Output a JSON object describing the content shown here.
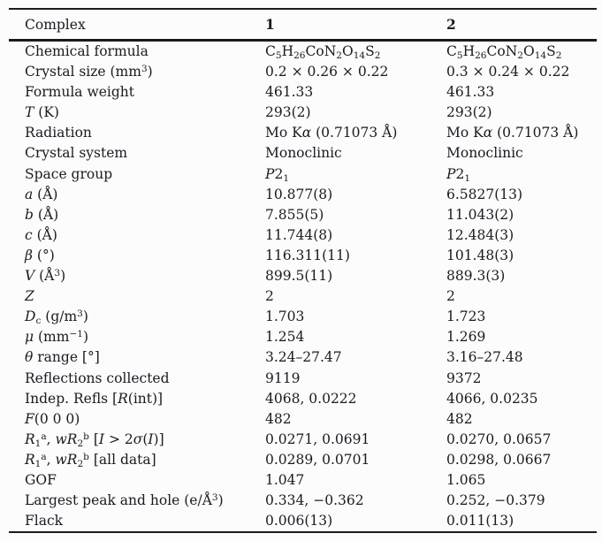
{
  "table": {
    "title": "Crystallographic data table",
    "text_color": "#1a1a22",
    "rule_color": "#1b1b1b",
    "header": {
      "label": "Complex",
      "col1": "1",
      "col2": "2"
    },
    "rows": [
      {
        "label": [
          [
            "n",
            "Chemical formula"
          ]
        ],
        "c1": [
          [
            "n",
            "C"
          ],
          [
            "sub",
            "5"
          ],
          [
            "n",
            "H"
          ],
          [
            "sub",
            "26"
          ],
          [
            "n",
            "CoN"
          ],
          [
            "sub",
            "2"
          ],
          [
            "n",
            "O"
          ],
          [
            "sub",
            "14"
          ],
          [
            "n",
            "S"
          ],
          [
            "sub",
            "2"
          ]
        ],
        "c2": [
          [
            "n",
            "C"
          ],
          [
            "sub",
            "5"
          ],
          [
            "n",
            "H"
          ],
          [
            "sub",
            "26"
          ],
          [
            "n",
            "CoN"
          ],
          [
            "sub",
            "2"
          ],
          [
            "n",
            "O"
          ],
          [
            "sub",
            "14"
          ],
          [
            "n",
            "S"
          ],
          [
            "sub",
            "2"
          ]
        ]
      },
      {
        "label": [
          [
            "n",
            "Crystal size (mm"
          ],
          [
            "sup",
            "3"
          ],
          [
            "n",
            ")"
          ]
        ],
        "c1": [
          [
            "n",
            "0.2 × 0.26 × 0.22"
          ]
        ],
        "c2": [
          [
            "n",
            "0.3 × 0.24 × 0.22"
          ]
        ]
      },
      {
        "label": [
          [
            "n",
            "Formula weight"
          ]
        ],
        "c1": [
          [
            "n",
            "461.33"
          ]
        ],
        "c2": [
          [
            "n",
            "461.33"
          ]
        ]
      },
      {
        "label": [
          [
            "i",
            "T"
          ],
          [
            "n",
            " (K)"
          ]
        ],
        "c1": [
          [
            "n",
            "293(2)"
          ]
        ],
        "c2": [
          [
            "n",
            "293(2)"
          ]
        ]
      },
      {
        "label": [
          [
            "n",
            "Radiation"
          ]
        ],
        "c1": [
          [
            "n",
            "Mo K"
          ],
          [
            "i",
            "α"
          ],
          [
            "n",
            " (0.71073 Å)"
          ]
        ],
        "c2": [
          [
            "n",
            "Mo K"
          ],
          [
            "i",
            "α"
          ],
          [
            "n",
            " (0.71073 Å)"
          ]
        ]
      },
      {
        "label": [
          [
            "n",
            "Crystal system"
          ]
        ],
        "c1": [
          [
            "n",
            "Monoclinic"
          ]
        ],
        "c2": [
          [
            "n",
            "Monoclinic"
          ]
        ]
      },
      {
        "label": [
          [
            "n",
            "Space group"
          ]
        ],
        "c1": [
          [
            "i",
            "P"
          ],
          [
            "n",
            "2"
          ],
          [
            "sub",
            "1"
          ]
        ],
        "c2": [
          [
            "i",
            "P"
          ],
          [
            "n",
            "2"
          ],
          [
            "sub",
            "1"
          ]
        ]
      },
      {
        "label": [
          [
            "i",
            "a"
          ],
          [
            "n",
            " (Å)"
          ]
        ],
        "c1": [
          [
            "n",
            "10.877(8)"
          ]
        ],
        "c2": [
          [
            "n",
            "6.5827(13)"
          ]
        ]
      },
      {
        "label": [
          [
            "i",
            "b"
          ],
          [
            "n",
            " (Å)"
          ]
        ],
        "c1": [
          [
            "n",
            "7.855(5)"
          ]
        ],
        "c2": [
          [
            "n",
            "11.043(2)"
          ]
        ]
      },
      {
        "label": [
          [
            "i",
            "c"
          ],
          [
            "n",
            " (Å)"
          ]
        ],
        "c1": [
          [
            "n",
            "11.744(8)"
          ]
        ],
        "c2": [
          [
            "n",
            "12.484(3)"
          ]
        ]
      },
      {
        "label": [
          [
            "i",
            "β"
          ],
          [
            "n",
            " (°)"
          ]
        ],
        "c1": [
          [
            "n",
            "116.311(11)"
          ]
        ],
        "c2": [
          [
            "n",
            "101.48(3)"
          ]
        ]
      },
      {
        "label": [
          [
            "i",
            "V"
          ],
          [
            "n",
            " (Å"
          ],
          [
            "sup",
            "3"
          ],
          [
            "n",
            ")"
          ]
        ],
        "c1": [
          [
            "n",
            "899.5(11)"
          ]
        ],
        "c2": [
          [
            "n",
            "889.3(3)"
          ]
        ]
      },
      {
        "label": [
          [
            "i",
            "Z"
          ]
        ],
        "c1": [
          [
            "n",
            "2"
          ]
        ],
        "c2": [
          [
            "n",
            "2"
          ]
        ]
      },
      {
        "label": [
          [
            "i",
            "D"
          ],
          [
            "sub",
            "c"
          ],
          [
            "n",
            " (g/m"
          ],
          [
            "sup",
            "3"
          ],
          [
            "n",
            ")"
          ]
        ],
        "c1": [
          [
            "n",
            "1.703"
          ]
        ],
        "c2": [
          [
            "n",
            "1.723"
          ]
        ]
      },
      {
        "label": [
          [
            "i",
            "μ"
          ],
          [
            "n",
            " (mm"
          ],
          [
            "sup",
            "−1"
          ],
          [
            "n",
            ")"
          ]
        ],
        "c1": [
          [
            "n",
            "1.254"
          ]
        ],
        "c2": [
          [
            "n",
            "1.269"
          ]
        ]
      },
      {
        "label": [
          [
            "i",
            "θ"
          ],
          [
            "n",
            " range [°]"
          ]
        ],
        "c1": [
          [
            "n",
            "3.24–27.47"
          ]
        ],
        "c2": [
          [
            "n",
            "3.16–27.48"
          ]
        ]
      },
      {
        "label": [
          [
            "n",
            "Reflections collected"
          ]
        ],
        "c1": [
          [
            "n",
            "9119"
          ]
        ],
        "c2": [
          [
            "n",
            "9372"
          ]
        ]
      },
      {
        "label": [
          [
            "n",
            "Indep. Refls ["
          ],
          [
            "i",
            "R"
          ],
          [
            "n",
            "(int)]"
          ]
        ],
        "c1": [
          [
            "n",
            "4068, 0.0222"
          ]
        ],
        "c2": [
          [
            "n",
            "4066, 0.0235"
          ]
        ]
      },
      {
        "label": [
          [
            "i",
            "F"
          ],
          [
            "n",
            "(0 0 0)"
          ]
        ],
        "c1": [
          [
            "n",
            "482"
          ]
        ],
        "c2": [
          [
            "n",
            "482"
          ]
        ]
      },
      {
        "label": [
          [
            "i",
            "R"
          ],
          [
            "sub",
            "1"
          ],
          [
            "sup",
            "a"
          ],
          [
            "n",
            ", "
          ],
          [
            "i",
            "wR"
          ],
          [
            "sub",
            "2"
          ],
          [
            "sup",
            "b"
          ],
          [
            "n",
            " ["
          ],
          [
            "i",
            "I"
          ],
          [
            "n",
            " > 2"
          ],
          [
            "i",
            "σ"
          ],
          [
            "n",
            "("
          ],
          [
            "i",
            "I"
          ],
          [
            "n",
            ")]"
          ]
        ],
        "c1": [
          [
            "n",
            "0.0271, 0.0691"
          ]
        ],
        "c2": [
          [
            "n",
            "0.0270, 0.0657"
          ]
        ]
      },
      {
        "label": [
          [
            "i",
            "R"
          ],
          [
            "sub",
            "1"
          ],
          [
            "sup",
            "a"
          ],
          [
            "n",
            ", "
          ],
          [
            "i",
            "wR"
          ],
          [
            "sub",
            "2"
          ],
          [
            "sup",
            "b"
          ],
          [
            "n",
            " [all data]"
          ]
        ],
        "c1": [
          [
            "n",
            "0.0289, 0.0701"
          ]
        ],
        "c2": [
          [
            "n",
            "0.0298, 0.0667"
          ]
        ]
      },
      {
        "label": [
          [
            "n",
            "GOF"
          ]
        ],
        "c1": [
          [
            "n",
            "1.047"
          ]
        ],
        "c2": [
          [
            "n",
            "1.065"
          ]
        ]
      },
      {
        "label": [
          [
            "n",
            "Largest peak and hole (e/Å"
          ],
          [
            "sup",
            "3"
          ],
          [
            "n",
            ")"
          ]
        ],
        "c1": [
          [
            "n",
            "0.334, −0.362"
          ]
        ],
        "c2": [
          [
            "n",
            "0.252, −0.379"
          ]
        ]
      },
      {
        "label": [
          [
            "n",
            "Flack"
          ]
        ],
        "c1": [
          [
            "n",
            "0.006(13)"
          ]
        ],
        "c2": [
          [
            "n",
            "0.011(13)"
          ]
        ]
      }
    ]
  }
}
